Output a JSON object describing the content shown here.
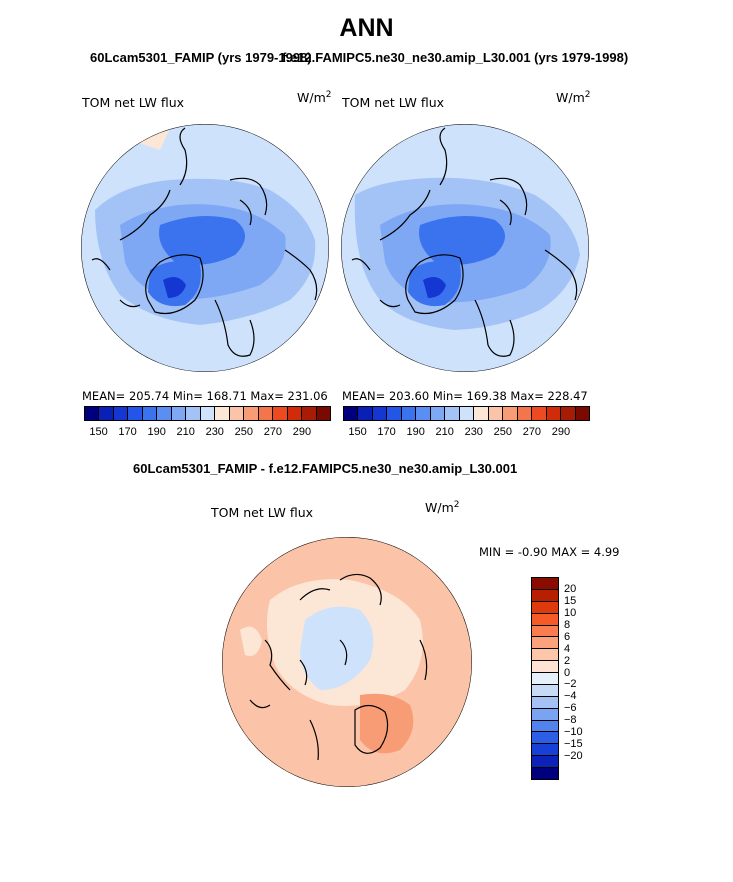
{
  "title": "ANN",
  "subtitle_left": "60Lcam5301_FAMIP (yrs 1979-1998)",
  "subtitle_right": "f.e12.FAMIPC5.ne30_ne30.amip_L30.001 (yrs 1979-1998)",
  "diff_title": "60Lcam5301_FAMIP - f.e12.FAMIPC5.ne30_ne30.amip_L30.001",
  "panels": [
    {
      "label": "TOM net LW flux",
      "unit": "W/m",
      "unit_exp": "2",
      "stats": "MEAN= 205.74   Min= 168.71   Max= 231.06"
    },
    {
      "label": "TOM net LW flux",
      "unit": "W/m",
      "unit_exp": "2",
      "stats": "MEAN= 203.60   Min= 169.38   Max= 228.47"
    },
    {
      "label": "TOM net LW flux",
      "unit": "W/m",
      "unit_exp": "2",
      "stats": "MIN =   -0.90  MAX =    4.99"
    }
  ],
  "colorbar_abs": {
    "colors": [
      "#00007f",
      "#0a1fb5",
      "#1437d2",
      "#2356e6",
      "#3b73ee",
      "#5b8ef2",
      "#7ea8f4",
      "#a3c3f7",
      "#cfe2fb",
      "#fce6d6",
      "#fbc4a8",
      "#f89c76",
      "#f4744c",
      "#ec4b22",
      "#d02c0a",
      "#a81b04",
      "#7a0a00"
    ],
    "ticks": [
      "150",
      "170",
      "190",
      "210",
      "230",
      "250",
      "270",
      "290"
    ]
  },
  "colorbar_diff": {
    "colors": [
      "#8a0c00",
      "#b81e00",
      "#df3a0e",
      "#f65a27",
      "#fa7d4f",
      "#fba27c",
      "#fdc6a8",
      "#fee3d4",
      "#e6f0fb",
      "#c7dbf7",
      "#a4c2f4",
      "#7aa3f1",
      "#5182ee",
      "#2c5fe6",
      "#1740d6",
      "#0d22b8",
      "#00007f"
    ],
    "ticks": [
      "20",
      "15",
      "10",
      "8",
      "6",
      "4",
      "2",
      "0",
      "−2",
      "−4",
      "−6",
      "−8",
      "−10",
      "−15",
      "−20"
    ]
  },
  "map_colors": {
    "light_blue": "#cfe2fb",
    "mid_blue": "#a3c3f7",
    "blue": "#7ea8f4",
    "deep_blue": "#3b73ee",
    "darkest_blue": "#1437d2",
    "peach": "#fce6d6",
    "salmon": "#fbc4a8",
    "orange": "#f89c76"
  }
}
